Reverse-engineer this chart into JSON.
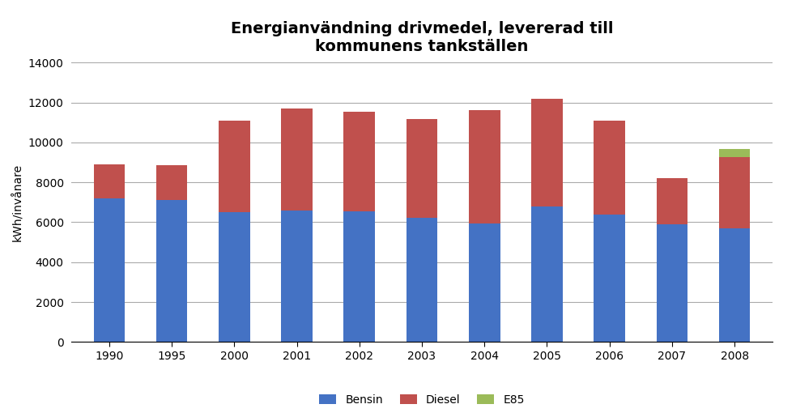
{
  "title": "Energianvändning drivmedel, levererad till\nkommunens tankställen",
  "ylabel": "kWh/invånare",
  "years": [
    1990,
    1995,
    2000,
    2001,
    2002,
    2003,
    2004,
    2005,
    2006,
    2007,
    2008
  ],
  "bensin": [
    7200,
    7100,
    6500,
    6600,
    6550,
    6200,
    5950,
    6800,
    6400,
    5900,
    5700
  ],
  "diesel": [
    1700,
    1750,
    4600,
    5100,
    5000,
    4950,
    5650,
    5400,
    4700,
    2300,
    3550
  ],
  "e85": [
    0,
    0,
    0,
    0,
    0,
    0,
    0,
    0,
    0,
    0,
    400
  ],
  "color_bensin": "#4472C4",
  "color_diesel": "#C0504D",
  "color_e85": "#9BBB59",
  "ylim": [
    0,
    14000
  ],
  "yticks": [
    0,
    2000,
    4000,
    6000,
    8000,
    10000,
    12000,
    14000
  ],
  "legend_labels": [
    "Bensin",
    "Diesel",
    "E85"
  ],
  "background_color": "#FFFFFF",
  "bar_width": 0.5
}
